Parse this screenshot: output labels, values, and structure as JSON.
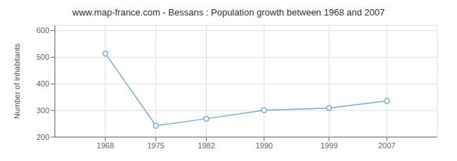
{
  "chart_data": {
    "type": "line",
    "title": "www.map-france.com - Bessans : Population growth between 1968 and 2007",
    "ylabel": "Number of inhabitants",
    "x": [
      1968,
      1975,
      1982,
      1990,
      1999,
      2007
    ],
    "values": [
      514,
      243,
      269,
      301,
      309,
      336
    ],
    "xlim": [
      1961,
      2014
    ],
    "xticks": [
      1968,
      1975,
      1982,
      1990,
      1999,
      2007
    ],
    "ylim": [
      200,
      620
    ],
    "yticks": [
      200,
      300,
      400,
      500,
      600
    ],
    "grid": true,
    "color": "#7aaac8",
    "marker": "circle"
  }
}
